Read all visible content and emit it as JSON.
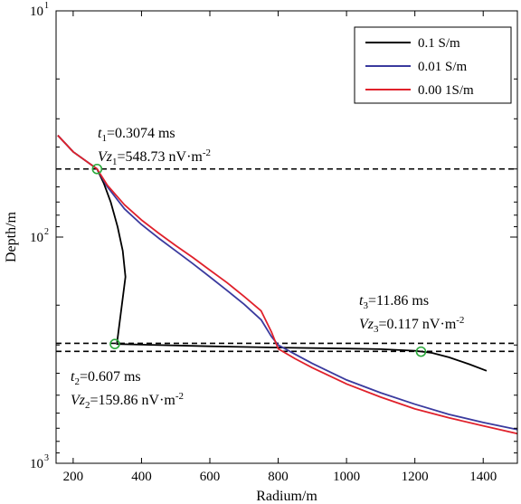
{
  "chart_data": {
    "type": "line",
    "xlabel": "Radium/m",
    "ylabel": "Depth/m",
    "xlim": [
      150,
      1500
    ],
    "ylim": [
      10,
      1000
    ],
    "y_scale": "log",
    "y_reversed": true,
    "x_ticks": [
      200,
      400,
      600,
      800,
      1000,
      1200,
      1400
    ],
    "y_ticks": [
      {
        "value": 10,
        "base": "10",
        "exp": "1"
      },
      {
        "value": 100,
        "base": "10",
        "exp": "2"
      },
      {
        "value": 1000,
        "base": "10",
        "exp": "3"
      }
    ],
    "legend": {
      "position": "top-right",
      "entries": [
        "0.1 S/m",
        "0.01 S/m",
        "0.00 1S/m"
      ]
    },
    "colors": {
      "black": "#000000",
      "blue": "#3a3a9e",
      "red": "#e0212b",
      "marker": "#2aa83a"
    },
    "series": [
      {
        "name": "0.1 S/m",
        "color": "#000000",
        "points": [
          [
            155,
            35.5
          ],
          [
            200,
            42
          ],
          [
            270,
            50
          ],
          [
            290,
            58
          ],
          [
            310,
            70
          ],
          [
            330,
            90
          ],
          [
            345,
            115
          ],
          [
            353,
            150
          ],
          [
            328,
            297
          ],
          [
            400,
            299
          ],
          [
            600,
            304
          ],
          [
            800,
            308
          ],
          [
            1000,
            311
          ],
          [
            1100,
            313
          ],
          [
            1200,
            318
          ],
          [
            1250,
            325
          ],
          [
            1300,
            340
          ],
          [
            1360,
            365
          ],
          [
            1410,
            390
          ]
        ]
      },
      {
        "name": "0.01 S/m",
        "color": "#3a3a9e",
        "points": [
          [
            155,
            35.5
          ],
          [
            200,
            42
          ],
          [
            270,
            50
          ],
          [
            300,
            60
          ],
          [
            350,
            75
          ],
          [
            400,
            88
          ],
          [
            450,
            101
          ],
          [
            500,
            115
          ],
          [
            550,
            131
          ],
          [
            600,
            150
          ],
          [
            650,
            172
          ],
          [
            700,
            198
          ],
          [
            750,
            232
          ],
          [
            780,
            275
          ],
          [
            800,
            300
          ],
          [
            850,
            330
          ],
          [
            900,
            362
          ],
          [
            1000,
            428
          ],
          [
            1100,
            488
          ],
          [
            1200,
            548
          ],
          [
            1300,
            608
          ],
          [
            1400,
            660
          ],
          [
            1500,
            710
          ]
        ]
      },
      {
        "name": "0.00 1S/m",
        "color": "#e0212b",
        "points": [
          [
            155,
            35.5
          ],
          [
            200,
            42
          ],
          [
            270,
            50
          ],
          [
            300,
            59
          ],
          [
            350,
            72
          ],
          [
            400,
            84
          ],
          [
            450,
            96
          ],
          [
            500,
            109
          ],
          [
            550,
            123
          ],
          [
            600,
            140
          ],
          [
            650,
            159
          ],
          [
            700,
            183
          ],
          [
            750,
            212
          ],
          [
            780,
            262
          ],
          [
            800,
            312
          ],
          [
            850,
            345
          ],
          [
            900,
            378
          ],
          [
            1000,
            446
          ],
          [
            1100,
            510
          ],
          [
            1200,
            575
          ],
          [
            1300,
            630
          ],
          [
            1400,
            683
          ],
          [
            1500,
            740
          ]
        ]
      }
    ],
    "hlines": [
      50,
      295,
      320
    ],
    "markers": [
      [
        270,
        50
      ],
      [
        322,
        297
      ],
      [
        1218,
        321
      ]
    ],
    "annotations": [
      {
        "id": "t1",
        "t_pre": "t",
        "t_sub": "1",
        "t_val": "=0.3074 ms",
        "v_pre": "Vz",
        "v_sub": "1",
        "v_val": "=548.73 nV·m",
        "v_exp": "-2",
        "x": 270,
        "y": 50,
        "anchor": "above"
      },
      {
        "id": "t2",
        "t_pre": "t",
        "t_sub": "2",
        "t_val": "=0.607 ms",
        "v_pre": "Vz",
        "v_sub": "2",
        "v_val": "=159.86 nV·m",
        "v_exp": "-2",
        "x": 322,
        "y": 297,
        "anchor": "below"
      },
      {
        "id": "t3",
        "t_pre": "t",
        "t_sub": "3",
        "t_val": "=11.86 ms",
        "v_pre": "Vz",
        "v_sub": "3",
        "v_val": "=0.117 nV·m",
        "v_exp": "-2",
        "x": 1218,
        "y": 321,
        "anchor": "above"
      }
    ]
  }
}
